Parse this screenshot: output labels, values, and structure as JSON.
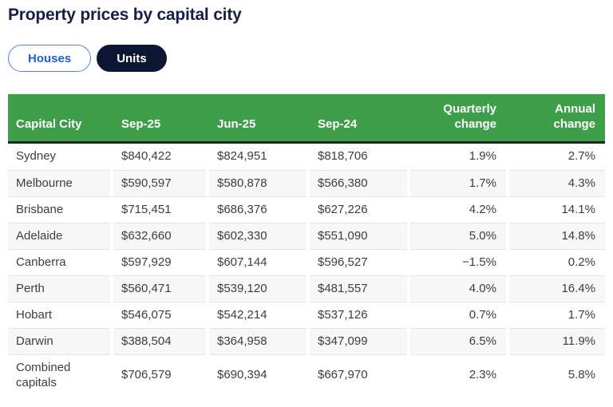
{
  "page": {
    "title": "Property prices by capital city"
  },
  "toggle": {
    "houses_label": "Houses",
    "units_label": "Units",
    "selected": "Units"
  },
  "colors": {
    "accent_green": "#3f9e49",
    "navy": "#151f49",
    "toggle_selected_bg": "#0c1833",
    "toggle_blue": "#2161cf",
    "alt_row_bg": "#f7f7f7"
  },
  "table": {
    "columns": [
      "Capital City",
      "Sep-25",
      "Jun-25",
      "Sep-24",
      "Quarterly change",
      "Annual change"
    ],
    "rows": [
      {
        "cells": [
          "Sydney",
          "$840,422",
          "$824,951",
          "$818,706",
          "1.9%",
          "2.7%"
        ]
      },
      {
        "cells": [
          "Melbourne",
          "$590,597",
          "$580,878",
          "$566,380",
          "1.7%",
          "4.3%"
        ]
      },
      {
        "cells": [
          "Brisbane",
          "$715,451",
          "$686,376",
          "$627,226",
          "4.2%",
          "14.1%"
        ]
      },
      {
        "cells": [
          "Adelaide",
          "$632,660",
          "$602,330",
          "$551,090",
          "5.0%",
          "14.8%"
        ]
      },
      {
        "cells": [
          "Canberra",
          "$597,929",
          "$607,144",
          "$596,527",
          "−1.5%",
          "0.2%"
        ]
      },
      {
        "cells": [
          "Perth",
          "$560,471",
          "$539,120",
          "$481,557",
          "4.0%",
          "16.4%"
        ]
      },
      {
        "cells": [
          "Hobart",
          "$546,075",
          "$542,214",
          "$537,126",
          "0.7%",
          "1.7%"
        ]
      },
      {
        "cells": [
          "Darwin",
          "$388,504",
          "$364,958",
          "$347,099",
          "6.5%",
          "11.9%"
        ]
      },
      {
        "cells": [
          "Combined capitals",
          "$706,579",
          "$690,394",
          "$667,970",
          "2.3%",
          "5.8%"
        ]
      }
    ]
  }
}
